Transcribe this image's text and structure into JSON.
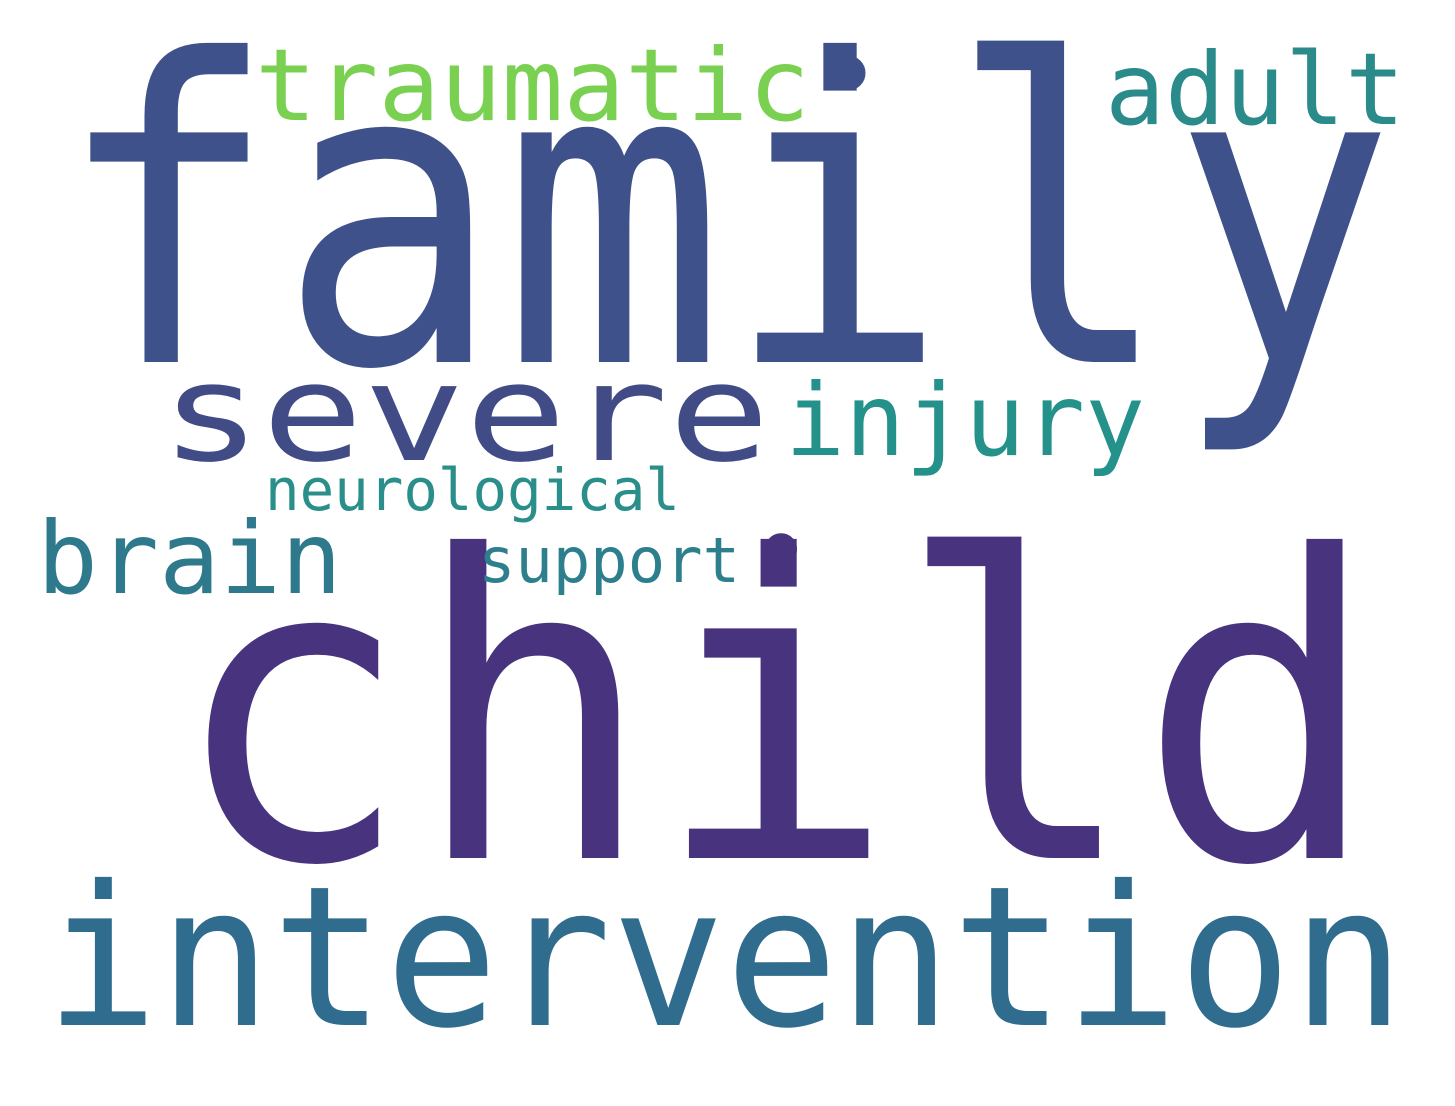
{
  "words": [
    {
      "id": "family",
      "text": "family",
      "color": "#3f518a"
    },
    {
      "id": "child",
      "text": "child",
      "color": "#48337f"
    },
    {
      "id": "intervention",
      "text": "intervention",
      "color": "#2f6c8e"
    },
    {
      "id": "traumatic",
      "text": "traumatic",
      "color": "#7ad151"
    },
    {
      "id": "adult",
      "text": "adult",
      "color": "#2b8a8a"
    },
    {
      "id": "severe",
      "text": "severe",
      "color": "#414b86"
    },
    {
      "id": "injury",
      "text": "injury",
      "color": "#24928b"
    },
    {
      "id": "brain",
      "text": "brain",
      "color": "#2e7a8c"
    },
    {
      "id": "neurological",
      "text": "neurological",
      "color": "#2a8f8a"
    },
    {
      "id": "support",
      "text": "support",
      "color": "#2e7f8e"
    },
    {
      "id": "dot-upper",
      "text": "•",
      "color": "#3f518a"
    },
    {
      "id": "dot-lower",
      "text": "•",
      "color": "#48337f"
    }
  ]
}
